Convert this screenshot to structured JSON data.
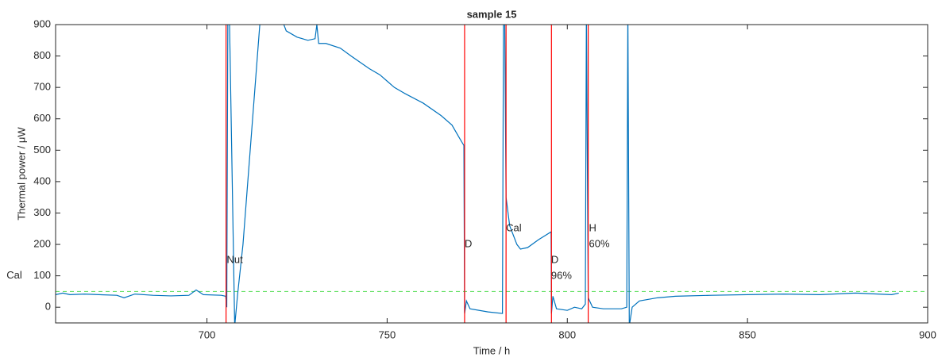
{
  "chart_data": {
    "type": "line",
    "title": "sample 15",
    "x_label": "Time / h",
    "y_label": "Thermal power / μW",
    "xlim": [
      658,
      900
    ],
    "ylim": [
      -50,
      900
    ],
    "xticks": [
      700,
      750,
      800,
      850,
      900
    ],
    "yticks": [
      0,
      100,
      200,
      300,
      400,
      500,
      600,
      700,
      800,
      900
    ],
    "color": "#0072bd",
    "x": [
      658,
      660,
      662,
      666,
      670,
      675,
      677,
      680,
      685,
      690,
      695,
      697,
      699,
      704,
      705.2,
      705.5,
      705.8,
      706.2,
      707.7,
      708.5,
      710,
      712,
      714,
      715,
      721,
      722,
      725,
      728,
      730,
      730.5,
      731,
      733,
      737,
      740,
      745,
      748,
      750,
      752,
      755,
      760,
      765,
      768,
      770,
      771.3,
      771.5,
      772,
      773,
      778,
      782,
      782.3,
      782.6,
      783,
      784,
      786,
      787,
      789,
      792,
      795.5,
      795.6,
      796,
      797,
      800,
      802,
      804,
      805,
      805.3,
      805.8,
      807,
      810,
      815,
      816.5,
      816.8,
      817.2,
      818,
      820,
      825,
      830,
      840,
      850,
      860,
      870,
      880,
      890,
      892
    ],
    "values": [
      40,
      45,
      40,
      42,
      40,
      38,
      30,
      42,
      38,
      36,
      38,
      55,
      40,
      38,
      35,
      0,
      950,
      950,
      -60,
      40,
      200,
      500,
      800,
      950,
      910,
      880,
      860,
      850,
      855,
      900,
      840,
      840,
      825,
      800,
      760,
      740,
      720,
      700,
      680,
      650,
      610,
      580,
      540,
      515,
      -20,
      20,
      -5,
      -15,
      -20,
      950,
      950,
      350,
      260,
      200,
      185,
      190,
      215,
      240,
      -20,
      35,
      -5,
      -10,
      0,
      -5,
      10,
      950,
      30,
      0,
      -5,
      -5,
      0,
      950,
      -60,
      0,
      20,
      30,
      35,
      38,
      40,
      42,
      40,
      45,
      40,
      45
    ],
    "event_lines": {
      "color": "#ff0000",
      "x": [
        705.3,
        771.5,
        783,
        795.6,
        805.8
      ]
    },
    "reference_line": {
      "y": 50,
      "color": "#66e066",
      "dashed": true
    },
    "annotations": [
      {
        "lines": [
          "Cal"
        ],
        "x": 644.4,
        "y": 100
      },
      {
        "lines": [
          "Nut"
        ],
        "x": 705.5,
        "y": 150
      },
      {
        "lines": [
          "D"
        ],
        "x": 771.5,
        "y": 200
      },
      {
        "lines": [
          "Cal"
        ],
        "x": 783,
        "y": 250
      },
      {
        "lines": [
          "D",
          "96%"
        ],
        "x": 795.5,
        "y": 150
      },
      {
        "lines": [
          "H",
          "60%"
        ],
        "x": 806,
        "y": 250
      }
    ]
  }
}
